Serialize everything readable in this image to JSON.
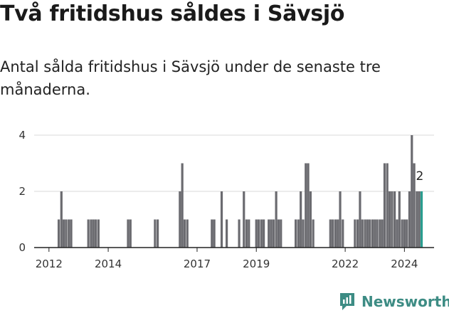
{
  "title": "Två fritidshus såldes i Sävsjö",
  "subtitle": "Antal sålda fritidshus i Sävsjö under de senaste tre månaderna.",
  "brand": {
    "name": "Newsworthy"
  },
  "colors": {
    "bar": "#6b6b70",
    "highlight": "#2a9d8f",
    "grid": "#d9d9d9",
    "axis": "#222222",
    "brand": "#3d8c84"
  },
  "chart_data": {
    "type": "bar",
    "x_unit": "year",
    "ylim": [
      0,
      4
    ],
    "yticks": [
      0,
      2,
      4
    ],
    "xticks": [
      2012,
      2014,
      2017,
      2019,
      2022,
      2024
    ],
    "grid": true,
    "bars": [
      {
        "x": 2012.33,
        "y": 1
      },
      {
        "x": 2012.42,
        "y": 2
      },
      {
        "x": 2012.5,
        "y": 1
      },
      {
        "x": 2012.58,
        "y": 1
      },
      {
        "x": 2012.67,
        "y": 1
      },
      {
        "x": 2012.75,
        "y": 1
      },
      {
        "x": 2013.33,
        "y": 1
      },
      {
        "x": 2013.42,
        "y": 1
      },
      {
        "x": 2013.5,
        "y": 1
      },
      {
        "x": 2013.58,
        "y": 1
      },
      {
        "x": 2013.67,
        "y": 1
      },
      {
        "x": 2014.67,
        "y": 1
      },
      {
        "x": 2014.75,
        "y": 1
      },
      {
        "x": 2015.58,
        "y": 1
      },
      {
        "x": 2015.67,
        "y": 1
      },
      {
        "x": 2016.42,
        "y": 2
      },
      {
        "x": 2016.5,
        "y": 3
      },
      {
        "x": 2016.58,
        "y": 1
      },
      {
        "x": 2016.67,
        "y": 1
      },
      {
        "x": 2017.5,
        "y": 1
      },
      {
        "x": 2017.58,
        "y": 1
      },
      {
        "x": 2017.83,
        "y": 2
      },
      {
        "x": 2018.0,
        "y": 1
      },
      {
        "x": 2018.42,
        "y": 1
      },
      {
        "x": 2018.58,
        "y": 2
      },
      {
        "x": 2018.67,
        "y": 1
      },
      {
        "x": 2018.75,
        "y": 1
      },
      {
        "x": 2019.0,
        "y": 1
      },
      {
        "x": 2019.08,
        "y": 1
      },
      {
        "x": 2019.17,
        "y": 1
      },
      {
        "x": 2019.25,
        "y": 1
      },
      {
        "x": 2019.42,
        "y": 1
      },
      {
        "x": 2019.5,
        "y": 1
      },
      {
        "x": 2019.58,
        "y": 1
      },
      {
        "x": 2019.67,
        "y": 2
      },
      {
        "x": 2019.75,
        "y": 1
      },
      {
        "x": 2019.83,
        "y": 1
      },
      {
        "x": 2020.33,
        "y": 1
      },
      {
        "x": 2020.42,
        "y": 1
      },
      {
        "x": 2020.5,
        "y": 2
      },
      {
        "x": 2020.58,
        "y": 1
      },
      {
        "x": 2020.67,
        "y": 3
      },
      {
        "x": 2020.75,
        "y": 3
      },
      {
        "x": 2020.83,
        "y": 2
      },
      {
        "x": 2020.92,
        "y": 1
      },
      {
        "x": 2021.5,
        "y": 1
      },
      {
        "x": 2021.58,
        "y": 1
      },
      {
        "x": 2021.67,
        "y": 1
      },
      {
        "x": 2021.75,
        "y": 1
      },
      {
        "x": 2021.83,
        "y": 2
      },
      {
        "x": 2021.92,
        "y": 1
      },
      {
        "x": 2022.33,
        "y": 1
      },
      {
        "x": 2022.42,
        "y": 1
      },
      {
        "x": 2022.5,
        "y": 2
      },
      {
        "x": 2022.58,
        "y": 1
      },
      {
        "x": 2022.67,
        "y": 1
      },
      {
        "x": 2022.75,
        "y": 1
      },
      {
        "x": 2022.83,
        "y": 1
      },
      {
        "x": 2022.92,
        "y": 1
      },
      {
        "x": 2023.0,
        "y": 1
      },
      {
        "x": 2023.08,
        "y": 1
      },
      {
        "x": 2023.17,
        "y": 1
      },
      {
        "x": 2023.25,
        "y": 1
      },
      {
        "x": 2023.33,
        "y": 3
      },
      {
        "x": 2023.42,
        "y": 3
      },
      {
        "x": 2023.5,
        "y": 2
      },
      {
        "x": 2023.58,
        "y": 2
      },
      {
        "x": 2023.67,
        "y": 2
      },
      {
        "x": 2023.75,
        "y": 1
      },
      {
        "x": 2023.83,
        "y": 2
      },
      {
        "x": 2023.92,
        "y": 1
      },
      {
        "x": 2024.0,
        "y": 1
      },
      {
        "x": 2024.08,
        "y": 1
      },
      {
        "x": 2024.17,
        "y": 2
      },
      {
        "x": 2024.25,
        "y": 4
      },
      {
        "x": 2024.33,
        "y": 3
      },
      {
        "x": 2024.42,
        "y": 2
      },
      {
        "x": 2024.5,
        "y": 2
      }
    ],
    "highlight": {
      "x": 2024.58,
      "y": 2,
      "label": "2"
    }
  }
}
